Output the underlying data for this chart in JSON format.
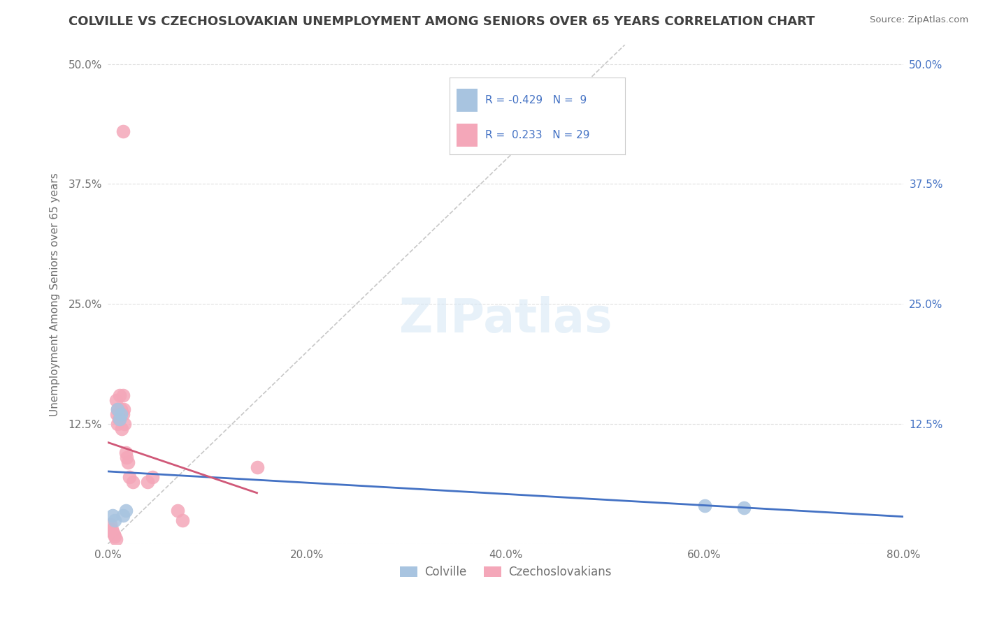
{
  "title": "COLVILLE VS CZECHOSLOVAKIAN UNEMPLOYMENT AMONG SENIORS OVER 65 YEARS CORRELATION CHART",
  "source": "Source: ZipAtlas.com",
  "ylabel": "Unemployment Among Seniors over 65 years",
  "xlim": [
    0.0,
    0.8
  ],
  "ylim": [
    0.0,
    0.52
  ],
  "xticks": [
    0.0,
    0.2,
    0.4,
    0.6,
    0.8
  ],
  "xtick_labels": [
    "0.0%",
    "20.0%",
    "40.0%",
    "60.0%",
    "80.0%"
  ],
  "yticks": [
    0.0,
    0.125,
    0.25,
    0.375,
    0.5
  ],
  "ytick_labels": [
    "",
    "12.5%",
    "25.0%",
    "37.5%",
    "50.0%"
  ],
  "colville_color": "#a8c4e0",
  "czech_color": "#f4a7b9",
  "trend_colville_color": "#4472c4",
  "trend_czech_color": "#d05878",
  "diagonal_color": "#c8c8c8",
  "R_colville": -0.429,
  "N_colville": 9,
  "R_czech": 0.233,
  "N_czech": 29,
  "colville_x": [
    0.005,
    0.007,
    0.01,
    0.012,
    0.013,
    0.015,
    0.018,
    0.6,
    0.64
  ],
  "colville_y": [
    0.03,
    0.025,
    0.14,
    0.13,
    0.135,
    0.03,
    0.035,
    0.04,
    0.038
  ],
  "czech_x": [
    0.003,
    0.004,
    0.005,
    0.006,
    0.007,
    0.008,
    0.008,
    0.009,
    0.01,
    0.01,
    0.011,
    0.012,
    0.013,
    0.014,
    0.015,
    0.015,
    0.016,
    0.017,
    0.018,
    0.019,
    0.02,
    0.022,
    0.025,
    0.04,
    0.045,
    0.07,
    0.075,
    0.15,
    0.015
  ],
  "czech_y": [
    0.02,
    0.015,
    0.012,
    0.01,
    0.008,
    0.005,
    0.15,
    0.135,
    0.125,
    0.14,
    0.13,
    0.155,
    0.14,
    0.12,
    0.155,
    0.135,
    0.14,
    0.125,
    0.095,
    0.09,
    0.085,
    0.07,
    0.065,
    0.065,
    0.07,
    0.035,
    0.025,
    0.08,
    0.43
  ],
  "background_color": "#ffffff",
  "grid_color": "#e0e0e0",
  "title_color": "#404040",
  "axis_label_color": "#707070",
  "right_axis_color": "#4472c4",
  "legend_value_color": "#4472c4"
}
